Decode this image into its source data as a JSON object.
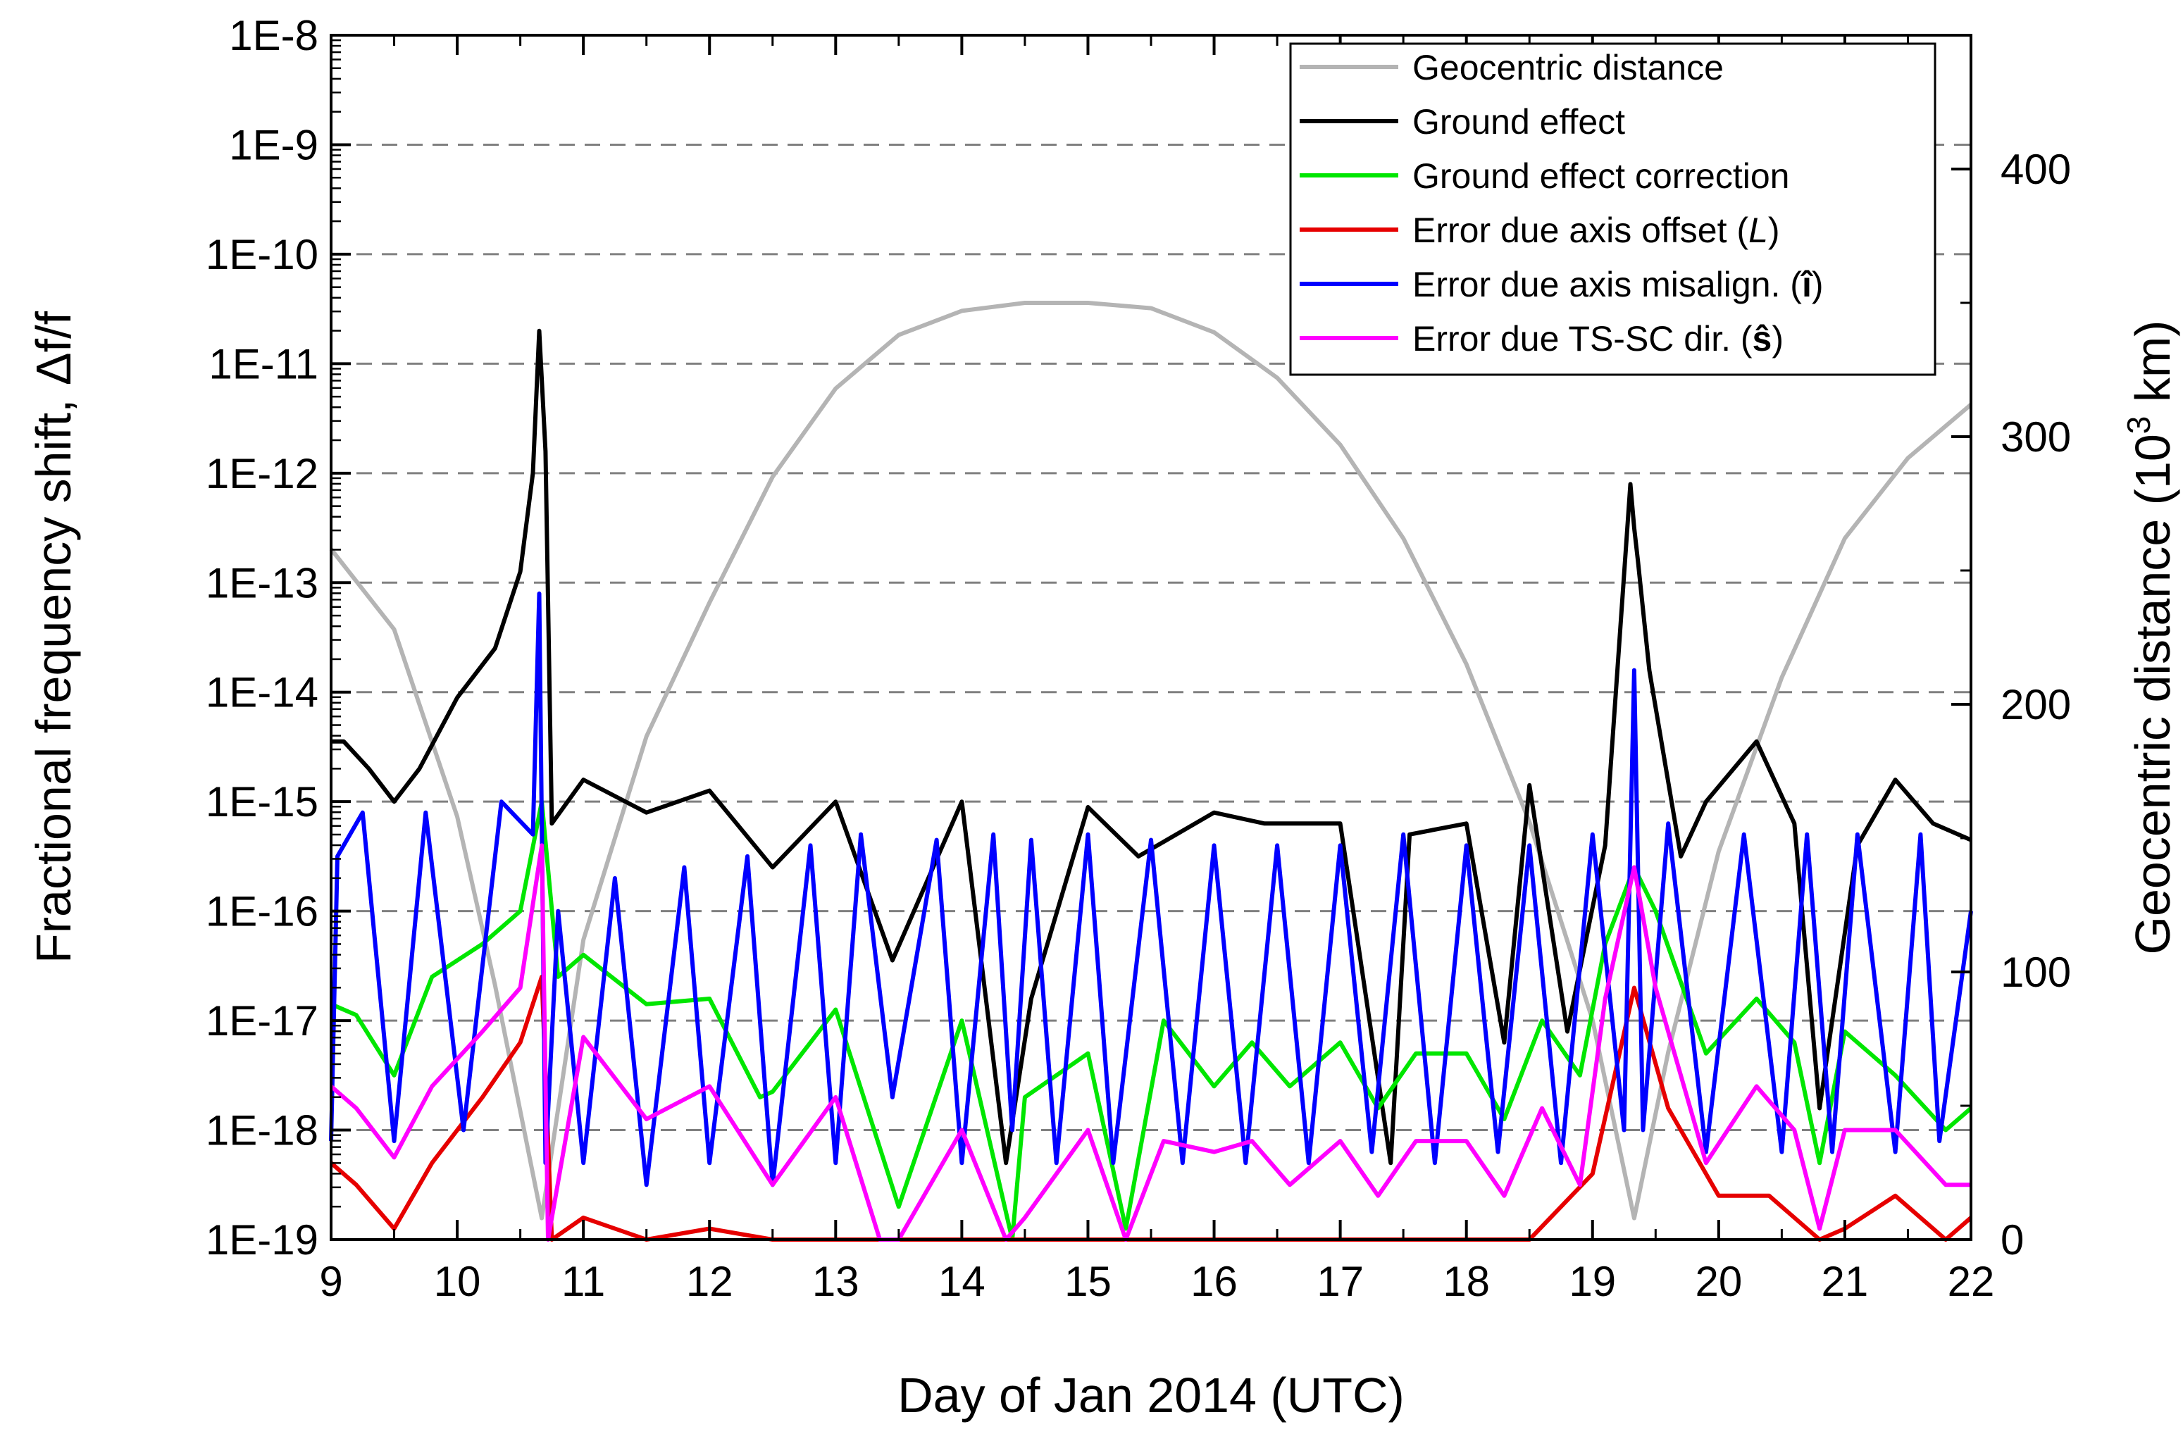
{
  "chart_data": {
    "type": "line",
    "title": "",
    "xlabel": "Day of Jan 2014 (UTC)",
    "ylabel_left": "Fractional frequency shift, Δf/f",
    "ylabel_right_prefix": "Geocentric distance (10",
    "ylabel_right_sup": "3",
    "ylabel_right_suffix": " km)",
    "xlim": [
      9,
      22
    ],
    "x_ticks": [
      "9",
      "10",
      "11",
      "12",
      "13",
      "14",
      "15",
      "16",
      "17",
      "18",
      "19",
      "20",
      "21",
      "22"
    ],
    "y_left_scale": "log",
    "y_left_exp_range": [
      -19,
      -8
    ],
    "y_left_ticks": [
      "1E-19",
      "1E-18",
      "1E-17",
      "1E-16",
      "1E-15",
      "1E-14",
      "1E-13",
      "1E-12",
      "1E-11",
      "1E-10",
      "1E-9",
      "1E-8"
    ],
    "y_right_range": [
      0,
      450
    ],
    "y_right_ticks": [
      "0",
      "100",
      "200",
      "300",
      "400"
    ],
    "grid": "dashed horizontal at each left decade",
    "legend_position": "top-right",
    "legend": [
      {
        "label": "Geocentric distance",
        "color": "#b4b4b4"
      },
      {
        "label": "Ground effect",
        "color": "#000000"
      },
      {
        "label": "Ground effect correction",
        "color": "#00e600"
      },
      {
        "label": "Error due axis offset (L)",
        "text": "Error due axis offset (",
        "italic": "L",
        "tail": ")",
        "color": "#e60000"
      },
      {
        "label": "Error due axis misalign. (î)",
        "text": "Error due axis misalign. (",
        "bold": "î",
        "tail": ")",
        "color": "#0000ff"
      },
      {
        "label": "Error due TS-SC dir. (ŝ)",
        "text": "Error due TS-SC dir. (",
        "bold": "ŝ",
        "tail": ")",
        "color": "#ff00ff"
      }
    ],
    "series": [
      {
        "name": "Geocentric distance",
        "axis": "right",
        "color": "#b4b4b4",
        "x": [
          9.0,
          9.5,
          10.0,
          10.3,
          10.67,
          11.0,
          11.5,
          12.0,
          12.5,
          13.0,
          13.5,
          14.0,
          14.5,
          15.0,
          15.5,
          16.0,
          16.5,
          17.0,
          17.5,
          18.0,
          18.5,
          19.0,
          19.33,
          19.6,
          20.0,
          20.5,
          21.0,
          21.5,
          22.0
        ],
        "values": [
          258,
          228,
          158,
          95,
          8,
          112,
          188,
          238,
          285,
          318,
          338,
          347,
          350,
          350,
          348,
          339,
          322,
          297,
          262,
          215,
          156,
          82,
          8,
          70,
          145,
          210,
          262,
          292,
          312
        ]
      },
      {
        "name": "Ground effect",
        "axis": "left",
        "color": "#000000",
        "x": [
          9.0,
          9.1,
          9.3,
          9.5,
          9.7,
          10.0,
          10.3,
          10.5,
          10.6,
          10.65,
          10.7,
          10.75,
          11.0,
          11.5,
          12.0,
          12.5,
          13.0,
          13.45,
          14.0,
          14.35,
          14.55,
          15.0,
          15.4,
          15.55,
          16.0,
          16.4,
          16.55,
          17.0,
          17.4,
          17.55,
          18.0,
          18.3,
          18.5,
          18.8,
          19.1,
          19.3,
          19.33,
          19.36,
          19.45,
          19.7,
          19.9,
          20.3,
          20.6,
          20.8,
          21.1,
          21.4,
          21.7,
          22.0
        ],
        "values": [
          -14.45,
          -14.45,
          -14.7,
          -15.0,
          -14.7,
          -14.05,
          -13.6,
          -12.9,
          -12.0,
          -10.7,
          -11.8,
          -15.2,
          -14.8,
          -15.1,
          -14.9,
          -15.6,
          -15.0,
          -16.45,
          -15.0,
          -18.3,
          -16.8,
          -15.05,
          -15.5,
          -15.4,
          -15.1,
          -15.2,
          -15.2,
          -15.2,
          -18.3,
          -15.3,
          -15.2,
          -17.2,
          -14.85,
          -17.1,
          -15.4,
          -12.1,
          -12.5,
          -12.8,
          -13.8,
          -15.5,
          -15.0,
          -14.45,
          -15.2,
          -17.8,
          -15.4,
          -14.8,
          -15.2,
          -15.35
        ]
      },
      {
        "name": "Ground effect correction",
        "axis": "left",
        "color": "#00e600",
        "x": [
          9.0,
          9.2,
          9.5,
          9.8,
          10.2,
          10.5,
          10.67,
          10.8,
          11.0,
          11.5,
          12.0,
          12.4,
          12.5,
          13.0,
          13.5,
          14.0,
          14.4,
          14.5,
          15.0,
          15.3,
          15.6,
          16.0,
          16.3,
          16.6,
          17.0,
          17.3,
          17.6,
          18.0,
          18.3,
          18.6,
          18.9,
          19.1,
          19.33,
          19.5,
          19.9,
          20.3,
          20.6,
          20.8,
          21.0,
          21.4,
          21.8,
          22.0
        ],
        "values": [
          -16.85,
          -16.95,
          -17.5,
          -16.6,
          -16.3,
          -16.0,
          -15.0,
          -16.6,
          -16.4,
          -16.85,
          -16.8,
          -17.7,
          -17.65,
          -16.9,
          -18.7,
          -17.0,
          -19.0,
          -17.7,
          -17.3,
          -18.9,
          -17.0,
          -17.6,
          -17.2,
          -17.6,
          -17.2,
          -17.8,
          -17.3,
          -17.3,
          -17.9,
          -17.0,
          -17.5,
          -16.3,
          -15.6,
          -16.0,
          -17.3,
          -16.8,
          -17.2,
          -18.3,
          -17.1,
          -17.5,
          -18.0,
          -17.8
        ]
      },
      {
        "name": "Error due axis offset (L)",
        "axis": "left",
        "color": "#e60000",
        "x": [
          9.0,
          9.2,
          9.5,
          9.8,
          10.2,
          10.5,
          10.67,
          10.75,
          11.0,
          11.5,
          12.0,
          12.5,
          13.0,
          13.5,
          14.0,
          14.5,
          15.0,
          16.0,
          17.0,
          18.0,
          18.5,
          19.0,
          19.33,
          19.6,
          20.0,
          20.4,
          20.8,
          21.0,
          21.4,
          21.8,
          22.0
        ],
        "values": [
          -18.3,
          -18.5,
          -18.9,
          -18.3,
          -17.7,
          -17.2,
          -16.6,
          -19.0,
          -18.8,
          -19.0,
          -18.9,
          -19.0,
          -19.05,
          -19.0,
          -19.1,
          -19.0,
          -19.1,
          -19.1,
          -19.1,
          -19.1,
          -19.0,
          -18.4,
          -16.7,
          -17.8,
          -18.6,
          -18.6,
          -19.0,
          -18.9,
          -18.6,
          -19.0,
          -18.8
        ]
      },
      {
        "name": "Error due axis misalign. (î)",
        "axis": "left",
        "color": "#0000ff",
        "x": [
          9.0,
          9.05,
          9.25,
          9.5,
          9.75,
          10.05,
          10.35,
          10.6,
          10.65,
          10.7,
          10.8,
          11.0,
          11.25,
          11.5,
          11.8,
          12.0,
          12.3,
          12.5,
          12.8,
          13.0,
          13.2,
          13.45,
          13.8,
          14.0,
          14.25,
          14.4,
          14.55,
          14.75,
          15.0,
          15.2,
          15.5,
          15.75,
          16.0,
          16.25,
          16.5,
          16.75,
          17.0,
          17.25,
          17.5,
          17.75,
          18.0,
          18.25,
          18.5,
          18.75,
          19.0,
          19.25,
          19.33,
          19.4,
          19.6,
          19.9,
          20.2,
          20.5,
          20.7,
          20.9,
          21.1,
          21.4,
          21.6,
          21.75,
          22.0
        ],
        "values": [
          -18.1,
          -15.5,
          -15.1,
          -18.1,
          -15.1,
          -18.0,
          -15.0,
          -15.3,
          -13.1,
          -18.3,
          -16.0,
          -18.3,
          -15.7,
          -18.5,
          -15.6,
          -18.3,
          -15.5,
          -18.5,
          -15.4,
          -18.3,
          -15.3,
          -17.7,
          -15.35,
          -18.3,
          -15.3,
          -18.0,
          -15.35,
          -18.3,
          -15.3,
          -18.3,
          -15.35,
          -18.3,
          -15.4,
          -18.3,
          -15.4,
          -18.3,
          -15.4,
          -18.2,
          -15.3,
          -18.3,
          -15.4,
          -18.2,
          -15.4,
          -18.3,
          -15.3,
          -18.0,
          -13.8,
          -18.0,
          -15.2,
          -18.2,
          -15.3,
          -18.2,
          -15.3,
          -18.2,
          -15.3,
          -18.2,
          -15.3,
          -18.1,
          -16.0
        ]
      },
      {
        "name": "Error due TS-SC dir. (ŝ)",
        "axis": "left",
        "color": "#ff00ff",
        "x": [
          9.0,
          9.2,
          9.5,
          9.8,
          10.2,
          10.5,
          10.67,
          10.72,
          11.0,
          11.5,
          12.0,
          12.5,
          13.0,
          13.35,
          13.5,
          14.0,
          14.35,
          14.5,
          15.0,
          15.3,
          15.6,
          16.0,
          16.3,
          16.6,
          17.0,
          17.3,
          17.6,
          18.0,
          18.3,
          18.6,
          18.9,
          19.1,
          19.33,
          19.5,
          19.9,
          20.3,
          20.6,
          20.8,
          21.0,
          21.4,
          21.8,
          22.0
        ],
        "values": [
          -17.6,
          -17.8,
          -18.25,
          -17.6,
          -17.1,
          -16.7,
          -15.4,
          -19.0,
          -17.15,
          -17.9,
          -17.6,
          -18.5,
          -17.7,
          -19.0,
          -19.0,
          -18.0,
          -19.0,
          -18.8,
          -18.0,
          -19.0,
          -18.1,
          -18.2,
          -18.1,
          -18.5,
          -18.1,
          -18.6,
          -18.1,
          -18.1,
          -18.6,
          -17.8,
          -18.5,
          -16.8,
          -15.6,
          -16.7,
          -18.3,
          -17.6,
          -18.0,
          -18.9,
          -18.0,
          -18.0,
          -18.5,
          -18.5
        ]
      }
    ]
  }
}
